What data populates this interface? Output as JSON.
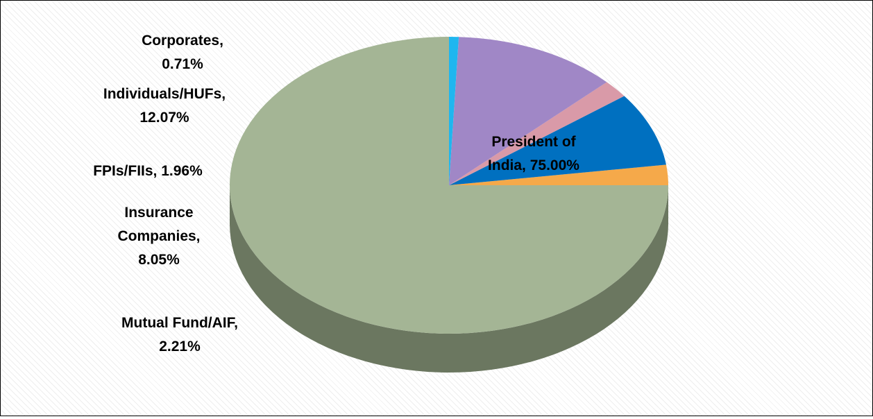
{
  "chart_data": {
    "type": "pie",
    "style": "3d",
    "start_side": "top",
    "slices": [
      {
        "label": "President of India",
        "value": 75.0,
        "text": [
          "President of",
          "India, 75.00%"
        ],
        "color": "#a4b595",
        "side": "#6b7760"
      },
      {
        "label": "Mutual Fund/AIF",
        "value": 2.21,
        "text": [
          "Mutual Fund/AIF,",
          "2.21%"
        ],
        "color": "#f5a94a",
        "side": "#b87a2e"
      },
      {
        "label": "Insurance Companies",
        "value": 8.05,
        "text": [
          "Insurance",
          "Companies,",
          "8.05%"
        ],
        "color": "#0070c0",
        "side": "#004f86"
      },
      {
        "label": "FPIs/FIIs",
        "value": 1.96,
        "text": [
          "FPIs/FIIs, 1.96%"
        ],
        "color": "#d99aa8",
        "side": "#a3707c"
      },
      {
        "label": "Individuals/HUFs",
        "value": 12.07,
        "text": [
          "Individuals/HUFs,",
          "12.07%"
        ],
        "color": "#a087c6",
        "side": "#6f5a8f"
      },
      {
        "label": "Corporates",
        "value": 0.71,
        "text": [
          "Corporates,",
          "0.71%"
        ],
        "color": "#1fb6ef",
        "side": "#1580a8"
      }
    ]
  }
}
